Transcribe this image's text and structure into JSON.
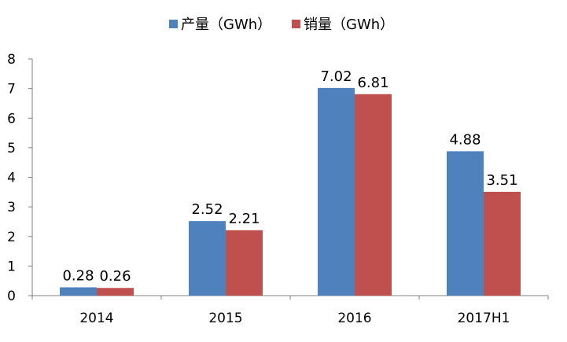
{
  "chart_data": {
    "type": "bar",
    "categories": [
      "2014",
      "2015",
      "2016",
      "2017H1"
    ],
    "series": [
      {
        "name": "产量（GWh）",
        "values": [
          0.28,
          2.52,
          7.02,
          4.88
        ],
        "color": "#4F81BD"
      },
      {
        "name": "销量（GWh）",
        "values": [
          0.26,
          2.21,
          6.81,
          3.51
        ],
        "color": "#C0504D"
      }
    ],
    "data_labels": [
      [
        "0.28",
        "2.52",
        "7.02",
        "4.88"
      ],
      [
        "0.26",
        "2.21",
        "6.81",
        "3.51"
      ]
    ],
    "y_ticks": [
      "0",
      "1",
      "2",
      "3",
      "4",
      "5",
      "6",
      "7",
      "8"
    ],
    "ylim": [
      0,
      8
    ],
    "grid": false,
    "legend_position": "top-center",
    "title": "",
    "xlabel": "",
    "ylabel": ""
  }
}
